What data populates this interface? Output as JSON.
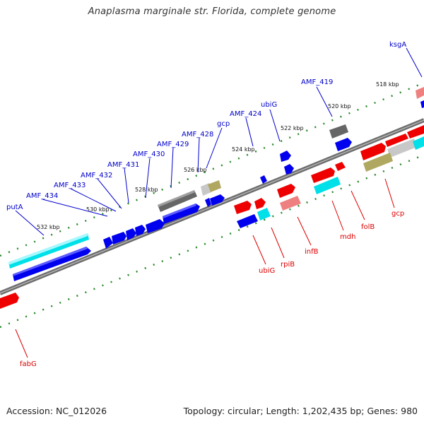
{
  "title": "Anaplasma marginale str. Florida, complete genome",
  "footer": {
    "accession": "Accession: NC_012026",
    "summary": "Topology: circular; Length: 1,202,435 bp; Genes: 980"
  },
  "colors": {
    "forward_gene": "#0000ee",
    "reverse_gene": "#ee0000",
    "cyan_gene": "#00e0e8",
    "grey_gene": "#6e6e6e",
    "khaki_gene": "#b0a860",
    "pink_gene": "#ee8080",
    "light_grey_gene": "#c8c8c8",
    "backbone": "#7a7a7a",
    "tick_dots": "#2a8a2a"
  },
  "ticks": [
    "518 kbp",
    "520 kbp",
    "522 kbp",
    "524 kbp",
    "526 kbp",
    "528 kbp",
    "530 kbp",
    "532 kbp"
  ],
  "forward_labels": [
    "ksgA",
    "AMF_419",
    "ubiG",
    "AMF_424",
    "gcp",
    "AMF_428",
    "AMF_429",
    "AMF_430",
    "AMF_431",
    "AMF_432",
    "AMF_433",
    "AMF_434",
    "putA"
  ],
  "reverse_labels": [
    "gcp",
    "folB",
    "mdh",
    "infB",
    "rpiB",
    "ubiG",
    "fabG"
  ]
}
